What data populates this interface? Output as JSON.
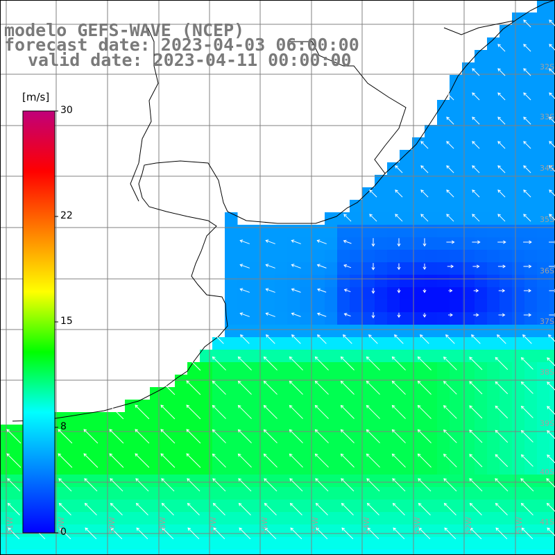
{
  "title": {
    "line1": "modelo GEFS-WAVE (NCEP)",
    "line2": "forecast date: 2023-04-03 06:00:00",
    "line3": "valid date: 2023-04-11 00:00:00"
  },
  "colorbar": {
    "unit": "[m/s]",
    "ticks": [
      "30",
      "22",
      "15",
      "8",
      "0"
    ],
    "min": 0,
    "max": 30,
    "colors": [
      "#0000ff",
      "#0080ff",
      "#00ffff",
      "#00ff00",
      "#ffff00",
      "#ff8000",
      "#ff0000",
      "#c0007a"
    ]
  },
  "map": {
    "land_color": "#ffffff",
    "coastline_color": "#000000",
    "grid_color": "#808080",
    "lat_labels": [
      "32S",
      "33S",
      "34S",
      "35S",
      "36S",
      "37S",
      "38S",
      "39S",
      "40S",
      "41S"
    ],
    "lon_labels": [
      "61W",
      "60W",
      "59W",
      "58W",
      "57W",
      "56W",
      "55W",
      "54W",
      "53W",
      "52W",
      "51W"
    ]
  }
}
